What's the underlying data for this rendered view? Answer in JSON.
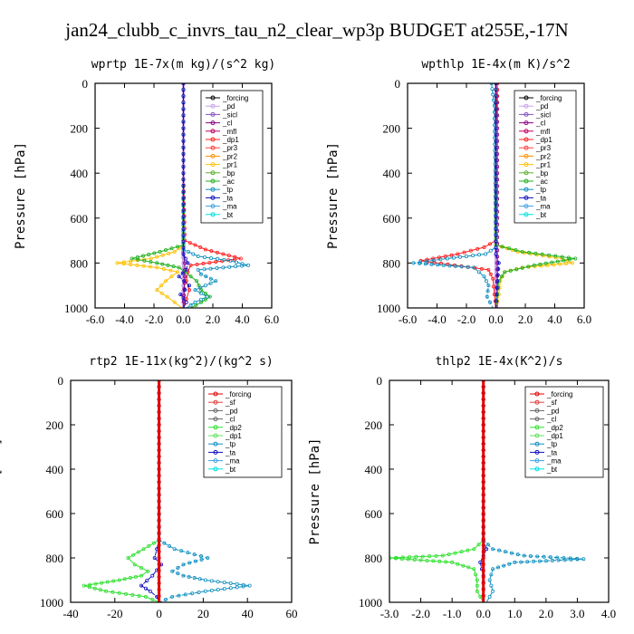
{
  "title": "jan24_clubb_c_invrs_tau_n2_clear_wp3p  BUDGET at255E,-17N",
  "chart_data": [
    {
      "type": "line",
      "title": "wprtp   1E-7x(m kg)/(s^2 kg)",
      "ylabel": "Pressure [hPa]",
      "xlim": [
        -6,
        6
      ],
      "ylim": [
        1000,
        0
      ],
      "xticks": [
        "-6.0",
        "-4.0",
        "-2.0",
        "0.0",
        "2.0",
        "4.0",
        "6.0"
      ],
      "xtick_values": [
        -6,
        -4,
        -2,
        0,
        2,
        4,
        6
      ],
      "yticks": [
        "0",
        "200",
        "400",
        "600",
        "800",
        "1000"
      ],
      "legend": [
        "_forcing",
        "_pd",
        "_sicl",
        "_cl",
        "_mfl",
        "_dp1",
        "_pr3",
        "_pr2",
        "_pr1",
        "_bp",
        "_ac",
        "_tp",
        "_ta",
        "_ma",
        "_bt"
      ],
      "series": [
        {
          "name": "_forcing",
          "color": "#000000",
          "x": [
            0,
            0,
            0,
            0,
            0,
            0,
            0,
            0
          ],
          "p": [
            0,
            200,
            400,
            600,
            700,
            800,
            900,
            1000
          ]
        },
        {
          "name": "_pd",
          "color": "#c8a2e8",
          "x": [
            0,
            0,
            0,
            0,
            0
          ],
          "p": [
            0,
            400,
            800,
            900,
            1000
          ]
        },
        {
          "name": "_cl",
          "color": "#8b0082",
          "x": [
            0,
            0,
            0,
            0.1,
            0.1,
            0
          ],
          "p": [
            0,
            400,
            760,
            800,
            860,
            1000
          ]
        },
        {
          "name": "_dp1",
          "color": "#ff2020",
          "x": [
            0,
            0,
            0.1,
            1.5,
            3.9,
            0.5,
            0.3,
            0.2,
            0.4,
            0.2,
            0
          ],
          "p": [
            0,
            400,
            700,
            740,
            780,
            810,
            840,
            880,
            920,
            960,
            1000
          ]
        },
        {
          "name": "_pr1",
          "color": "#ffc000",
          "x": [
            0,
            0,
            0,
            -0.6,
            -2.2,
            -4.5,
            -1.8,
            -0.4,
            -1.2,
            -1.8,
            -1.1,
            -0.6,
            -0.1
          ],
          "p": [
            0,
            400,
            720,
            750,
            780,
            800,
            820,
            840,
            880,
            920,
            950,
            975,
            1000
          ]
        },
        {
          "name": "_ac",
          "color": "#20b020",
          "x": [
            0,
            0,
            0,
            -1.6,
            -3.5,
            -1.8,
            -0.3,
            0.1,
            0.9,
            1.2,
            1.8,
            1.2,
            0.5
          ],
          "p": [
            0,
            400,
            720,
            750,
            780,
            800,
            820,
            840,
            880,
            920,
            950,
            975,
            1000
          ]
        },
        {
          "name": "_tp",
          "color": "#1090c0",
          "x": [
            0,
            0,
            0,
            1.0,
            3.2,
            4.4,
            1.0,
            1.2,
            2.2,
            0.8,
            1.6,
            0.8,
            0.2
          ],
          "p": [
            0,
            400,
            740,
            770,
            790,
            810,
            830,
            850,
            880,
            920,
            950,
            975,
            1000
          ]
        },
        {
          "name": "_ta",
          "color": "#1010c0",
          "x": [
            0,
            0,
            0,
            0.3,
            0.2,
            -0.3,
            0.4,
            -0.2,
            0.2,
            0
          ],
          "p": [
            0,
            400,
            760,
            800,
            830,
            860,
            900,
            940,
            975,
            1000
          ]
        }
      ]
    },
    {
      "type": "line",
      "title": "wpthlp   1E-4x(m K)/s^2",
      "ylabel": "Pressure [hPa]",
      "xlim": [
        -6,
        6
      ],
      "ylim": [
        1000,
        0
      ],
      "xticks": [
        "-6.0",
        "-4.0",
        "-2.0",
        "0.0",
        "2.0",
        "4.0",
        "6.0"
      ],
      "xtick_values": [
        -6,
        -4,
        -2,
        0,
        2,
        4,
        6
      ],
      "yticks": [
        "0",
        "200",
        "400",
        "600",
        "800",
        "1000"
      ],
      "legend": [
        "_forcing",
        "_pd",
        "_sicl",
        "_cl",
        "_mfl",
        "_dp1",
        "_pr3",
        "_pr2",
        "_pr1",
        "_bp",
        "_ac",
        "_tp",
        "_ta",
        "_ma",
        "_bt"
      ],
      "series": [
        {
          "name": "_pd",
          "color": "#c8a2e8",
          "x": [
            0,
            0,
            0,
            0
          ],
          "p": [
            0,
            400,
            800,
            1000
          ]
        },
        {
          "name": "_cl",
          "color": "#8b0082",
          "x": [
            0.1,
            0.1,
            0.1,
            0.1
          ],
          "p": [
            0,
            400,
            800,
            1000
          ]
        },
        {
          "name": "_dp1",
          "color": "#ff2020",
          "x": [
            0.1,
            0,
            0,
            -0.8,
            -2.6,
            -5.1,
            -2.8,
            -0.5,
            -0.2,
            -0.1,
            0
          ],
          "p": [
            0,
            200,
            700,
            730,
            760,
            790,
            810,
            830,
            870,
            940,
            1000
          ]
        },
        {
          "name": "_pr1",
          "color": "#ffc000",
          "x": [
            0,
            0,
            0,
            1.5,
            4.5,
            5.2,
            1.8,
            0.6,
            0.3,
            0.2,
            0
          ],
          "p": [
            0,
            400,
            720,
            750,
            780,
            800,
            820,
            840,
            880,
            940,
            1000
          ]
        },
        {
          "name": "_ac",
          "color": "#20b020",
          "x": [
            0,
            0,
            0,
            1.8,
            5.4,
            2.6,
            0.6,
            0.2,
            0.1,
            0
          ],
          "p": [
            0,
            400,
            720,
            750,
            780,
            810,
            840,
            880,
            940,
            1000
          ]
        },
        {
          "name": "_tp",
          "color": "#1090c0",
          "x": [
            -0.3,
            -0.1,
            0,
            -0.7,
            -3.3,
            -5.6,
            -1.5,
            -0.8,
            -0.5,
            -0.6,
            -0.2
          ],
          "p": [
            0,
            100,
            730,
            760,
            780,
            800,
            820,
            860,
            900,
            950,
            1000
          ]
        },
        {
          "name": "_ta",
          "color": "#1010c0",
          "x": [
            0,
            0,
            0,
            0.2,
            0.1,
            0
          ],
          "p": [
            0,
            400,
            760,
            800,
            880,
            1000
          ]
        }
      ]
    },
    {
      "type": "line",
      "title": "rtp2   1E-11x(kg^2)/(kg^2 s)",
      "ylabel": "Pressure [hPa]",
      "xlim": [
        -40,
        60
      ],
      "ylim": [
        1000,
        0
      ],
      "xticks": [
        "-40",
        "-20",
        "0",
        "20",
        "40",
        "60"
      ],
      "xtick_values": [
        -40,
        -20,
        0,
        20,
        40,
        60
      ],
      "yticks": [
        "0",
        "200",
        "400",
        "600",
        "800",
        "1000"
      ],
      "legend": [
        "_forcing",
        "_sf",
        "_pd",
        "_cl",
        "_dp2",
        "_dp1",
        "_tp",
        "_ta",
        "_ma",
        "_bt"
      ],
      "series": [
        {
          "name": "_dp2",
          "color": "#30e030",
          "x": [
            0,
            0,
            0,
            -7,
            -14,
            -11,
            -5,
            -8,
            -18,
            -34,
            -24,
            -6,
            0
          ],
          "p": [
            0,
            400,
            720,
            760,
            800,
            830,
            860,
            880,
            900,
            925,
            950,
            975,
            1000
          ]
        },
        {
          "name": "_tp",
          "color": "#1090c0",
          "x": [
            0,
            0,
            0,
            7,
            22,
            11,
            6,
            11,
            21,
            41,
            21,
            6,
            0
          ],
          "p": [
            0,
            400,
            720,
            760,
            800,
            830,
            860,
            880,
            900,
            925,
            950,
            975,
            1000
          ]
        },
        {
          "name": "_ta",
          "color": "#1010c0",
          "x": [
            0,
            0,
            0,
            -1,
            -2,
            1,
            -3,
            -8,
            -4,
            -1,
            0
          ],
          "p": [
            0,
            400,
            720,
            760,
            800,
            830,
            880,
            925,
            950,
            975,
            1000
          ]
        },
        {
          "name": "_forcing",
          "color": "#e00000",
          "x": [
            0,
            0,
            0,
            0,
            0,
            0
          ],
          "p": [
            0,
            200,
            400,
            600,
            800,
            1000
          ]
        }
      ]
    },
    {
      "type": "line",
      "title": "thlp2   1E-4x(K^2)/s",
      "ylabel": "Pressure [hPa]",
      "xlim": [
        -3,
        4
      ],
      "ylim": [
        1000,
        0
      ],
      "xticks": [
        "-3.0",
        "-2.0",
        "-1.0",
        "0.0",
        "1.0",
        "2.0",
        "3.0",
        "4.0"
      ],
      "xtick_values": [
        -3,
        -2,
        -1,
        0,
        1,
        2,
        3,
        4
      ],
      "yticks": [
        "0",
        "200",
        "400",
        "600",
        "800",
        "1000"
      ],
      "legend": [
        "_forcing",
        "_sf",
        "_pd",
        "_cl",
        "_dp2",
        "_dp1",
        "_tp",
        "_ta",
        "_ma",
        "_bt"
      ],
      "series": [
        {
          "name": "_dp2",
          "color": "#30e030",
          "x": [
            0,
            0,
            0,
            -0.3,
            -1.3,
            -3.0,
            -1.0,
            -0.3,
            -0.2,
            -0.2,
            0
          ],
          "p": [
            0,
            400,
            720,
            760,
            790,
            800,
            820,
            850,
            900,
            950,
            1000
          ]
        },
        {
          "name": "_tp",
          "color": "#1090c0",
          "x": [
            0,
            0,
            0,
            0.3,
            1.3,
            3.2,
            1.0,
            0.3,
            0.2,
            0.3,
            0.1
          ],
          "p": [
            0,
            400,
            720,
            760,
            790,
            805,
            820,
            850,
            900,
            950,
            1000
          ]
        },
        {
          "name": "_ta",
          "color": "#1010c0",
          "x": [
            0,
            0,
            0,
            0.1,
            -0.1,
            0,
            0
          ],
          "p": [
            0,
            400,
            720,
            760,
            820,
            880,
            1000
          ]
        },
        {
          "name": "_forcing",
          "color": "#e00000",
          "x": [
            0,
            0,
            0,
            0,
            0,
            0
          ],
          "p": [
            0,
            200,
            400,
            600,
            800,
            1000
          ]
        }
      ]
    }
  ]
}
